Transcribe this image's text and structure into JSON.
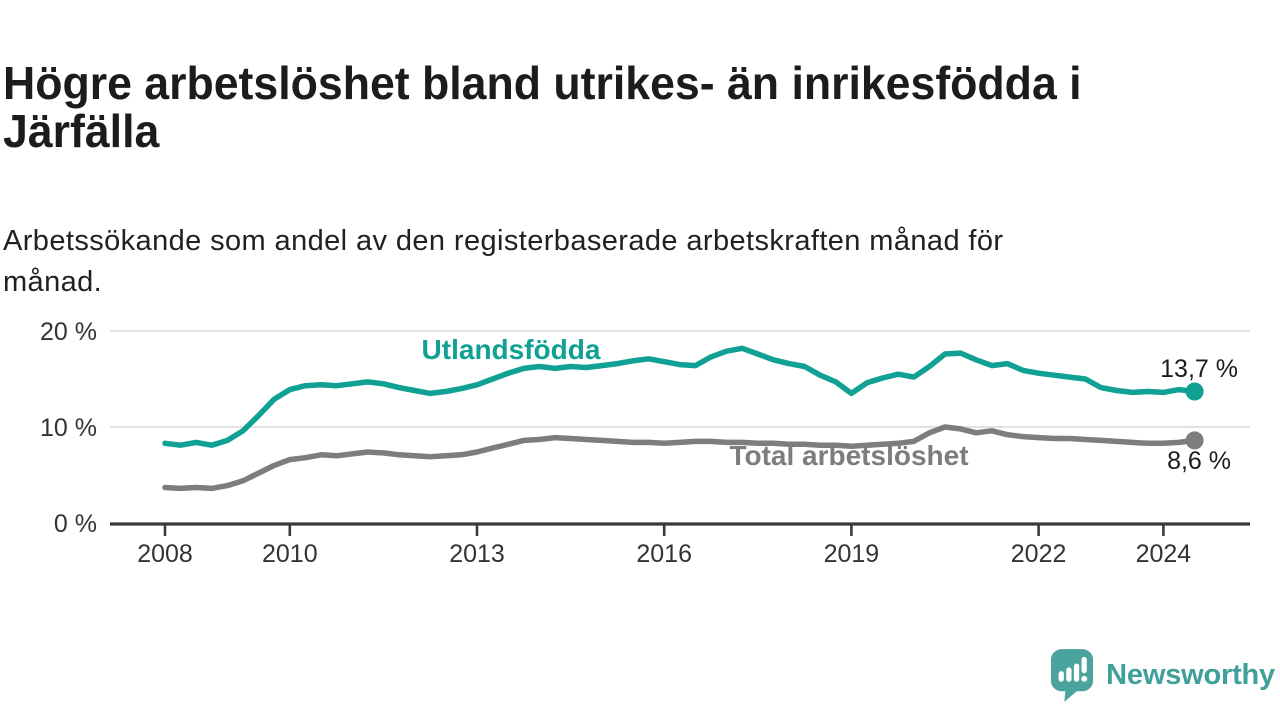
{
  "header": {
    "title_lines": [
      "Högre arbetslöshet bland utrikes- än inrikesfödda i",
      "Järfälla"
    ],
    "subtitle_lines": [
      "Arbetssökande som andel av den registerbaserade arbetskraften månad för",
      "månad."
    ]
  },
  "logo": {
    "text": "Newsworthy"
  },
  "colors": {
    "teal": "#10a094",
    "gray": "#7d7d7d",
    "logo_teal": "#4aa49e",
    "title_text": "#1c1c1c",
    "axis_text": "#333333",
    "axis_line": "#3a3a3a",
    "grid_line": "#e2e2e2",
    "value_label": "#1c1c1c"
  },
  "chart_data": {
    "type": "line",
    "title": "Högre arbetslöshet bland utrikes- än inrikesfödda i Järfälla",
    "subtitle": "Arbetssökande som andel av den registerbaserade arbetskraften månad för månad.",
    "unit": "%",
    "xlim": [
      2007.2,
      2025.35
    ],
    "ylim": [
      0,
      20
    ],
    "grid": "horizontal",
    "legend_position": "inline-labels",
    "x_ticks": [
      {
        "x": 2008,
        "label": "2008"
      },
      {
        "x": 2010,
        "label": "2010"
      },
      {
        "x": 2013,
        "label": "2013"
      },
      {
        "x": 2016,
        "label": "2016"
      },
      {
        "x": 2019,
        "label": "2019"
      },
      {
        "x": 2022,
        "label": "2022"
      },
      {
        "x": 2024,
        "label": "2024"
      }
    ],
    "y_ticks": [
      {
        "v": 0,
        "label": "0 %"
      },
      {
        "v": 10,
        "label": "10 %"
      },
      {
        "v": 20,
        "label": "20 %"
      }
    ],
    "series": [
      {
        "id": "utlandsfodda",
        "name": "Utlandsfödda",
        "color": "#10a094",
        "end_label": "13,7 %",
        "end_value": 13.7,
        "x_start": 2008.0,
        "x_step": 0.25,
        "values": [
          8.3,
          8.1,
          8.4,
          8.1,
          8.6,
          9.6,
          11.2,
          12.9,
          13.9,
          14.3,
          14.4,
          14.3,
          14.5,
          14.7,
          14.5,
          14.1,
          13.8,
          13.5,
          13.7,
          14.0,
          14.4,
          15.0,
          15.6,
          16.1,
          16.3,
          16.1,
          16.3,
          16.2,
          16.4,
          16.6,
          16.9,
          17.1,
          16.8,
          16.5,
          16.4,
          17.3,
          17.9,
          18.2,
          17.6,
          17.0,
          16.6,
          16.3,
          15.4,
          14.7,
          13.5,
          14.6,
          15.1,
          15.5,
          15.2,
          16.3,
          17.6,
          17.7,
          17.0,
          16.4,
          16.6,
          15.9,
          15.6,
          15.4,
          15.2,
          15.0,
          14.1,
          13.8,
          13.6,
          13.7,
          13.6,
          13.9,
          13.7
        ]
      },
      {
        "id": "total",
        "name": "Total arbetslöshet",
        "color": "#7d7d7d",
        "end_label": "8,6 %",
        "end_value": 8.6,
        "x_start": 2008.0,
        "x_step": 0.25,
        "values": [
          3.7,
          3.6,
          3.7,
          3.6,
          3.9,
          4.4,
          5.2,
          6.0,
          6.6,
          6.8,
          7.1,
          7.0,
          7.2,
          7.4,
          7.3,
          7.1,
          7.0,
          6.9,
          7.0,
          7.1,
          7.4,
          7.8,
          8.2,
          8.6,
          8.7,
          8.9,
          8.8,
          8.7,
          8.6,
          8.5,
          8.4,
          8.4,
          8.3,
          8.4,
          8.5,
          8.5,
          8.4,
          8.4,
          8.3,
          8.3,
          8.2,
          8.2,
          8.1,
          8.1,
          8.0,
          8.1,
          8.2,
          8.3,
          8.5,
          9.4,
          10.0,
          9.8,
          9.4,
          9.6,
          9.2,
          9.0,
          8.9,
          8.8,
          8.8,
          8.7,
          8.6,
          8.5,
          8.4,
          8.3,
          8.3,
          8.4,
          8.6
        ]
      }
    ]
  }
}
